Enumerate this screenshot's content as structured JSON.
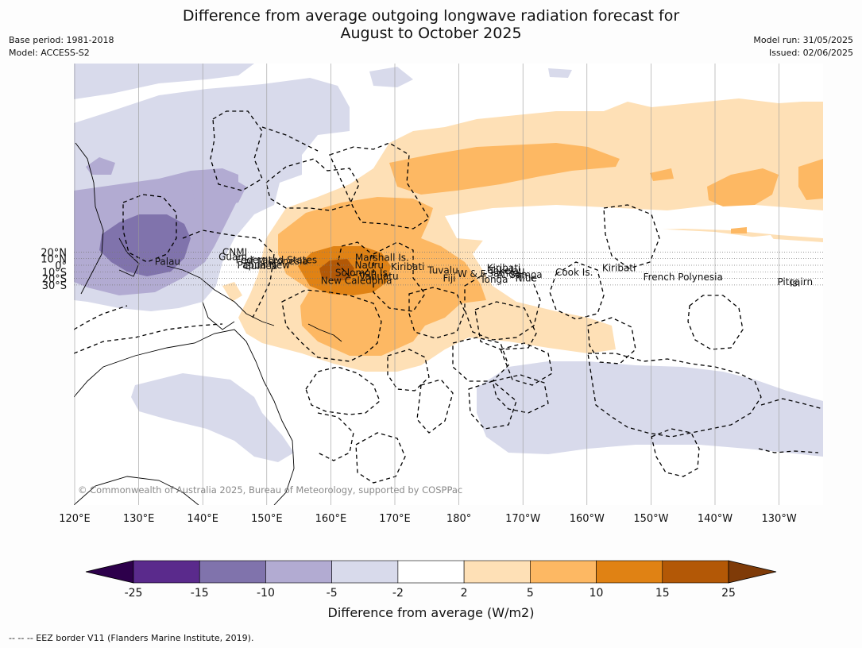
{
  "title": {
    "line1": "Difference from average outgoing longwave radiation forecast for",
    "line2": "August to October 2025"
  },
  "meta": {
    "base_period": "Base period: 1981-2018",
    "model": "Model: ACCESS-S2",
    "model_run": "Model run: 31/05/2025",
    "issued": "Issued: 02/06/2025"
  },
  "map": {
    "lon_ticks": [
      "120°E",
      "130°E",
      "140°E",
      "150°E",
      "160°E",
      "170°E",
      "180°",
      "170°W",
      "160°W",
      "150°W",
      "140°W",
      "130°W"
    ],
    "lat_ticks": [
      "20°N",
      "10°N",
      "0°",
      "10°S",
      "20°S",
      "30°S"
    ],
    "copyright": "© Commonwealth of Australia 2025, Bureau of Meteorology, supported by COSPPac",
    "region_labels": [
      {
        "text": "CNMI",
        "lon": 145.0,
        "lat": 20.0
      },
      {
        "text": "Guam",
        "lon": 144.7,
        "lat": 12.6
      },
      {
        "text": "Marshall Is.",
        "lon": 168.0,
        "lat": 11.5
      },
      {
        "text": "Federated States",
        "lon": 151.5,
        "lat": 7.8
      },
      {
        "text": "of Micronesia",
        "lon": 151.5,
        "lat": 6.2
      },
      {
        "text": "Palau",
        "lon": 134.5,
        "lat": 5.3
      },
      {
        "text": "Papua New",
        "lon": 149.5,
        "lat": 0.0
      },
      {
        "text": "Guinea",
        "lon": 149.0,
        "lat": -1.5
      },
      {
        "text": "Nauru",
        "lon": 166.0,
        "lat": 0.0
      },
      {
        "text": "Kiribati",
        "lon": 172.0,
        "lat": -2.3
      },
      {
        "text": "Kiribati",
        "lon": 187.0,
        "lat": -4.3
      },
      {
        "text": "Kiribati",
        "lon": 205.0,
        "lat": -4.3
      },
      {
        "text": "Tuvalu",
        "lon": 177.5,
        "lat": -8.0
      },
      {
        "text": "Tokelau",
        "lon": 187.5,
        "lat": -8.3
      },
      {
        "text": "Cook Is.",
        "lon": 198.0,
        "lat": -10.8
      },
      {
        "text": "Solomon Is.",
        "lon": 165.0,
        "lat": -11.2
      },
      {
        "text": "Samoa",
        "lon": 187.0,
        "lat": -12.4
      },
      {
        "text": "W & F",
        "lon": 182.0,
        "lat": -13.3
      },
      {
        "text": "A. Samoa",
        "lon": 189.5,
        "lat": -14.4
      },
      {
        "text": "Vanuatu",
        "lon": 167.5,
        "lat": -16.7
      },
      {
        "text": "Fiji",
        "lon": 178.5,
        "lat": -19.7
      },
      {
        "text": "Niue",
        "lon": 190.5,
        "lat": -19.6
      },
      {
        "text": "French Polynesia",
        "lon": 215.0,
        "lat": -18.2
      },
      {
        "text": "Tonga",
        "lon": 185.5,
        "lat": -21.8
      },
      {
        "text": "New Caledonia",
        "lon": 164.0,
        "lat": -23.5
      },
      {
        "text": "Pitcairn",
        "lon": 232.5,
        "lat": -25.6
      },
      {
        "text": "Is.",
        "lon": 232.5,
        "lat": -27.2
      }
    ]
  },
  "colorbar": {
    "label": "Difference from average (W/m2)",
    "ticks": [
      "-25",
      "-15",
      "-10",
      "-5",
      "-2",
      "2",
      "5",
      "10",
      "15",
      "25"
    ],
    "colors": {
      "below_min": "#2d004b",
      "bins": [
        "#5a2a8c",
        "#8073ac",
        "#b2abd2",
        "#d8daeb",
        "#ffffff",
        "#fee0b6",
        "#fdb863",
        "#e08214",
        "#b35806"
      ],
      "above_max": "#7f3b08"
    }
  },
  "footer": "-- -- -- EEZ border V11 (Flanders Marine Institute, 2019)."
}
